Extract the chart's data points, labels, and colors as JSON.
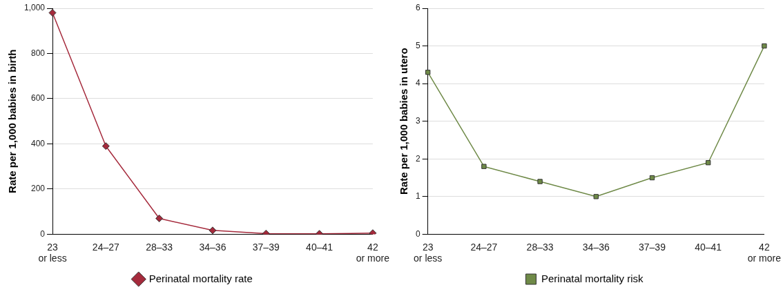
{
  "chart_data": [
    {
      "type": "line",
      "ylabel": "Rate per 1,000 babies in birth",
      "categories": [
        "23 or less",
        "24–27",
        "28–33",
        "34–36",
        "37–39",
        "40–41",
        "42 or more"
      ],
      "series": [
        {
          "name": "Perinatal mortality rate",
          "color": "#a52a3c",
          "values": [
            980,
            390,
            70,
            17,
            3,
            2,
            5
          ]
        }
      ],
      "ylim": [
        0,
        1000
      ],
      "yticks": [
        0,
        200,
        400,
        600,
        800,
        {
          "value": 1000,
          "label": "1,000"
        }
      ],
      "grid": "y",
      "legend": "bottom",
      "marker": "diamond",
      "line_style": "solid"
    },
    {
      "type": "line",
      "ylabel": "Rate per 1,000 babies in utero",
      "categories": [
        "23 or less",
        "24–27",
        "28–33",
        "34–36",
        "37–39",
        "40–41",
        "42 or more"
      ],
      "series": [
        {
          "name": "Perinatal mortality risk",
          "color": "#6f8a48",
          "values": [
            4.3,
            1.8,
            1.4,
            1.0,
            1.5,
            1.9,
            5.0
          ]
        }
      ],
      "ylim": [
        0,
        6
      ],
      "yticks": [
        0,
        1,
        2,
        3,
        4,
        5,
        6
      ],
      "grid": "y",
      "legend": "bottom",
      "marker": "square",
      "line_style": "solid"
    }
  ]
}
